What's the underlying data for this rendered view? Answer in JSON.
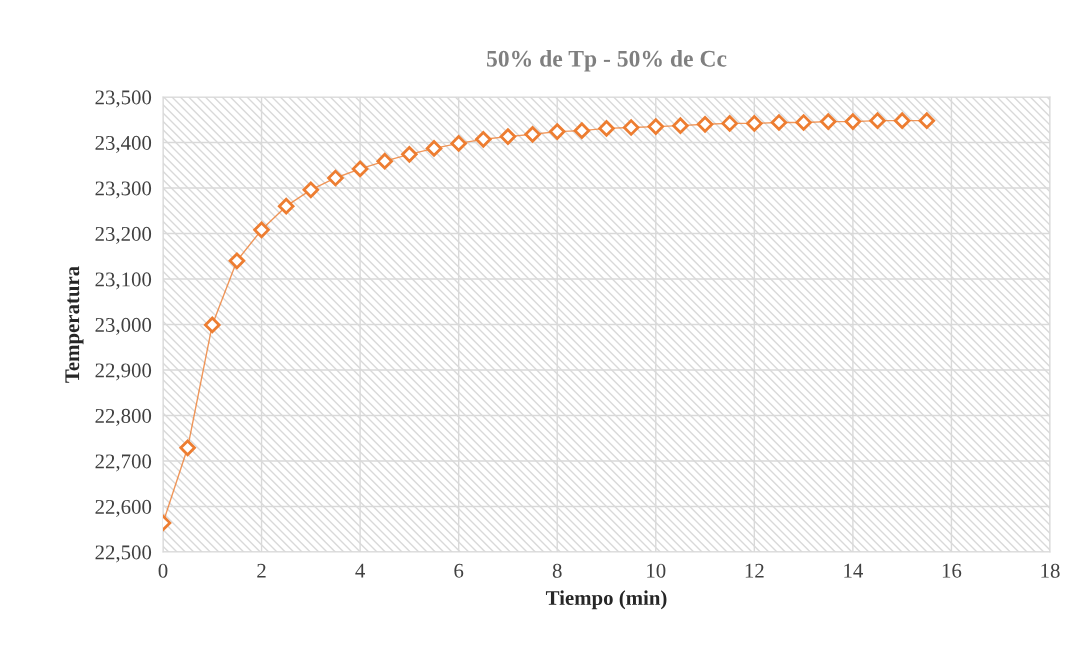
{
  "chart_data": {
    "type": "line",
    "title": "50% de Tp - 50% de Cc",
    "xlabel": "Tiempo (min)",
    "ylabel": "Temperatura",
    "x": [
      0,
      0.5,
      1,
      1.5,
      2,
      2.5,
      3,
      3.5,
      4,
      4.5,
      5,
      5.5,
      6,
      6.5,
      7,
      7.5,
      8,
      8.5,
      9,
      9.5,
      10,
      10.5,
      11,
      11.5,
      12,
      12.5,
      13,
      13.5,
      14,
      14.5,
      15,
      15.5
    ],
    "series": [
      {
        "color": "#ed7d31",
        "values": [
          22564,
          22729,
          22999,
          23140,
          23208,
          23260,
          23296,
          23322,
          23342,
          23359,
          23374,
          23387,
          23398,
          23407,
          23413,
          23418,
          23424,
          23426,
          23431,
          23433,
          23435,
          23437,
          23440,
          23442,
          23442,
          23444,
          23444,
          23446,
          23446,
          23448,
          23448,
          23448
        ]
      }
    ],
    "xlim": [
      0,
      18
    ],
    "xticks": [
      0,
      2,
      4,
      6,
      8,
      10,
      12,
      14,
      16,
      18
    ],
    "ylim": [
      22500,
      23500
    ],
    "yticks": [
      {
        "value": 22500,
        "label": "22,500"
      },
      {
        "value": 22600,
        "label": "22,600"
      },
      {
        "value": 22700,
        "label": "22,700"
      },
      {
        "value": 22800,
        "label": "22,800"
      },
      {
        "value": 22900,
        "label": "22,900"
      },
      {
        "value": 23000,
        "label": "23,000"
      },
      {
        "value": 23100,
        "label": "23,100"
      },
      {
        "value": 23200,
        "label": "23,200"
      },
      {
        "value": 23300,
        "label": "23,300"
      },
      {
        "value": 23400,
        "label": "23,400"
      },
      {
        "value": 23500,
        "label": "23,500"
      }
    ],
    "grid": true,
    "marker": "diamond",
    "line_style": "solid"
  }
}
